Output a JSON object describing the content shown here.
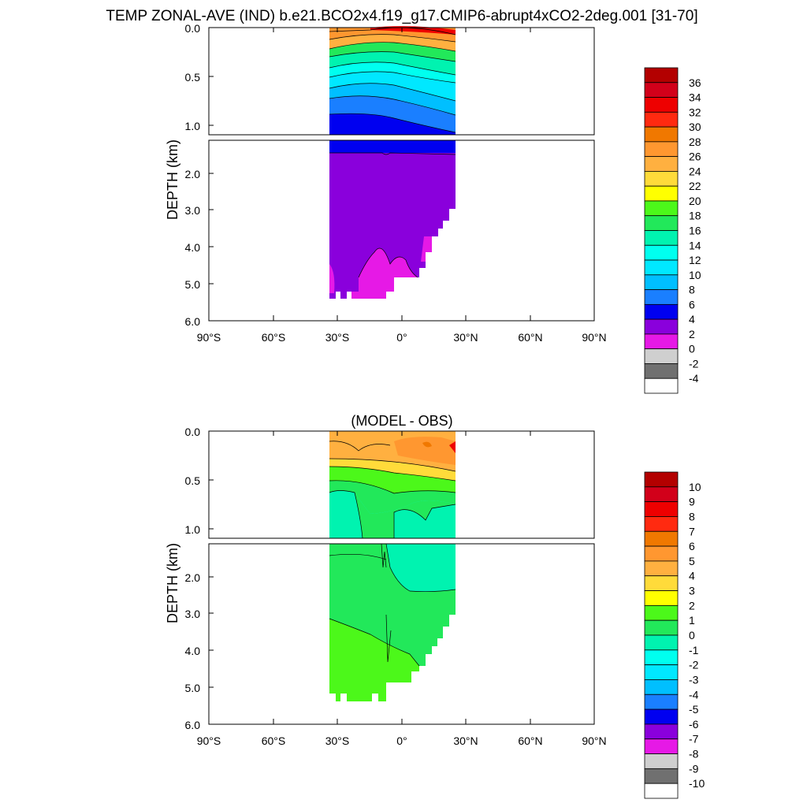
{
  "title": "TEMP ZONAL-AVE (IND) b.e21.BCO2x4.f19_g17.CMIP6-abrupt4xCO2-2deg.001 [31-70]",
  "chart_data": [
    {
      "type": "heatmap",
      "title": "",
      "ylabel": "DEPTH (km)",
      "xlabel": "",
      "x_ticks": [
        "90°S",
        "60°S",
        "30°S",
        "0°",
        "30°N",
        "60°N",
        "90°N"
      ],
      "x_range": [
        -90,
        90
      ],
      "y_upper_ticks": [
        "0.0",
        "0.5",
        "1.0"
      ],
      "y_lower_ticks": [
        "2.0",
        "3.0",
        "4.0",
        "5.0",
        "6.0"
      ],
      "y_range_km": [
        0,
        6
      ],
      "colorbar_labels": [
        "36",
        "34",
        "32",
        "30",
        "28",
        "26",
        "24",
        "22",
        "20",
        "18",
        "16",
        "14",
        "12",
        "10",
        "8",
        "6",
        "4",
        "2",
        "0",
        "-2",
        "-4"
      ],
      "colors": [
        "#b30000",
        "#d2001a",
        "#ee0000",
        "#ff2a10",
        "#f07800",
        "#ff9730",
        "#ffb040",
        "#ffdb3a",
        "#ffff00",
        "#4cf81a",
        "#22e85a",
        "#00f3b0",
        "#00ffef",
        "#00e8ff",
        "#00bfff",
        "#1a7fff",
        "#0000f0",
        "#8a00dc",
        "#e619e6",
        "#cfcfcf",
        "#707070",
        "#ffffff"
      ]
    },
    {
      "type": "heatmap",
      "title": "(MODEL - OBS)",
      "ylabel": "DEPTH (km)",
      "xlabel": "",
      "x_ticks": [
        "90°S",
        "60°S",
        "30°S",
        "0°",
        "30°N",
        "60°N",
        "90°N"
      ],
      "x_range": [
        -90,
        90
      ],
      "y_upper_ticks": [
        "0.0",
        "0.5",
        "1.0"
      ],
      "y_lower_ticks": [
        "2.0",
        "3.0",
        "4.0",
        "5.0",
        "6.0"
      ],
      "y_range_km": [
        0,
        6
      ],
      "colorbar_labels": [
        "10",
        "9",
        "8",
        "7",
        "6",
        "5",
        "4",
        "3",
        "2",
        "1",
        "0",
        "-1",
        "-2",
        "-3",
        "-4",
        "-5",
        "-6",
        "-7",
        "-8",
        "-9",
        "-10"
      ],
      "colors": [
        "#b30000",
        "#d2001a",
        "#ee0000",
        "#ff2a10",
        "#f07800",
        "#ff9730",
        "#ffb040",
        "#ffdb3a",
        "#ffff00",
        "#4cf81a",
        "#22e85a",
        "#00f3b0",
        "#00ffef",
        "#00e8ff",
        "#00bfff",
        "#1a7fff",
        "#0000f0",
        "#8a00dc",
        "#e619e6",
        "#cfcfcf",
        "#707070",
        "#ffffff"
      ]
    }
  ]
}
